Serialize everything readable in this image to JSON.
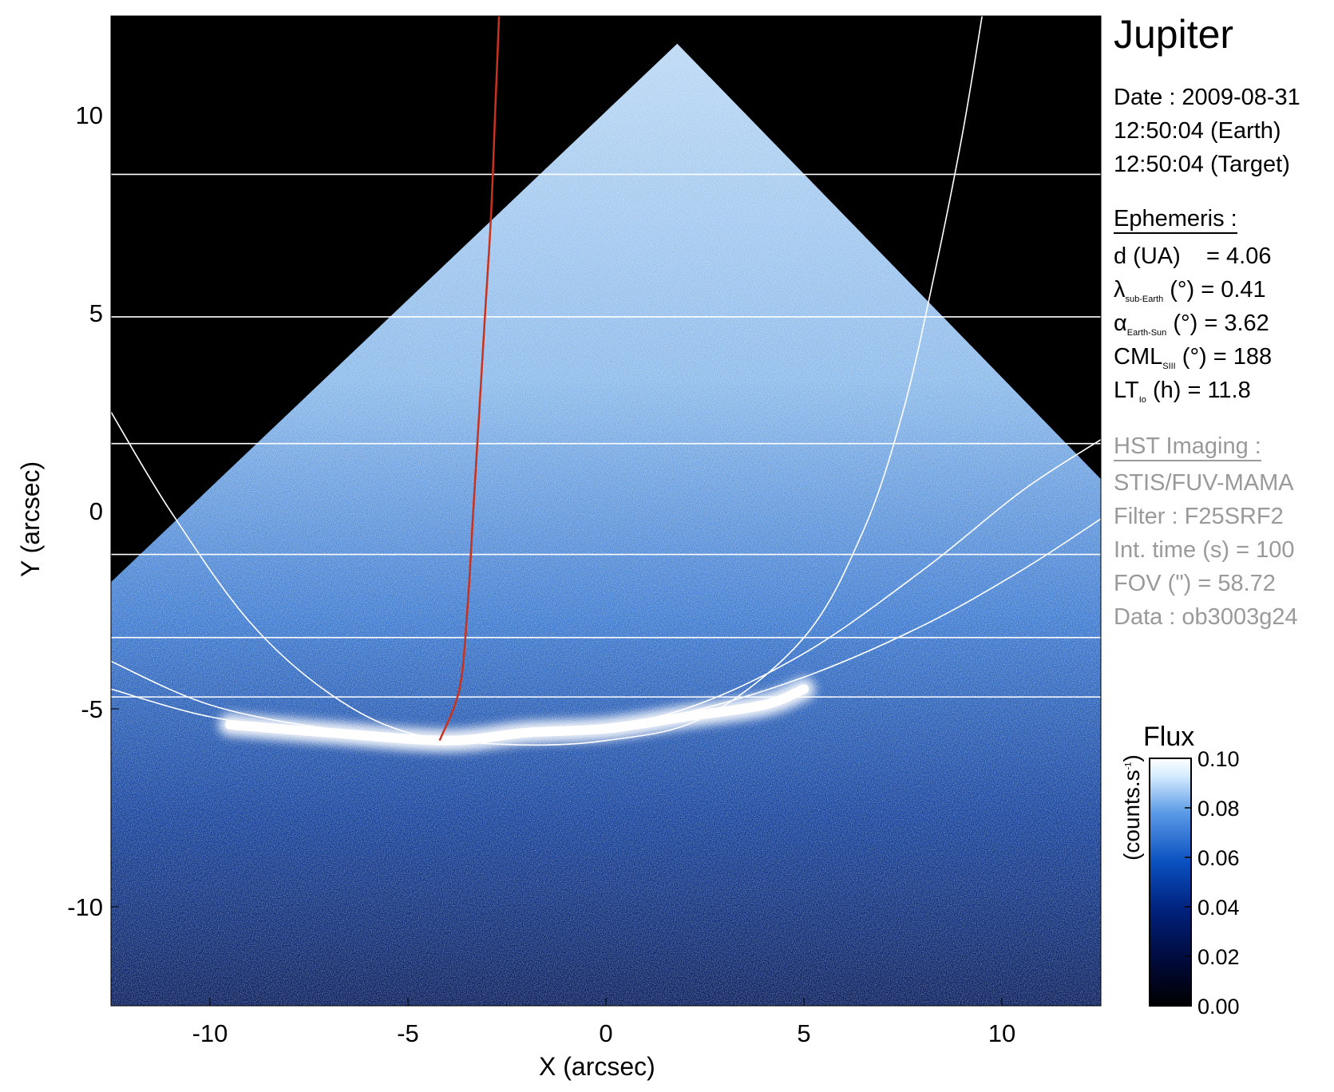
{
  "chart_data": {
    "type": "heatmap",
    "title": "Jupiter",
    "xlabel": "X (arcsec)",
    "ylabel": "Y (arcsec)",
    "xlim": [
      -12.5,
      12.5
    ],
    "ylim": [
      -12.5,
      12.5
    ],
    "x_ticks": [
      -10,
      -5,
      0,
      5,
      10
    ],
    "y_ticks": [
      -10,
      -5,
      0,
      5,
      10
    ],
    "background_color": "#000000",
    "colormap": [
      "#000000",
      "#000a3a",
      "#00207a",
      "#0a50c0",
      "#5a9ae6",
      "#d6ecff",
      "#ffffff"
    ],
    "colorbar": {
      "title": "Flux",
      "unit": "(counts.s",
      "unit_exponent": "-1",
      "unit_close": ")",
      "range": [
        0.0,
        0.1
      ],
      "ticks": [
        "0.10",
        "0.08",
        "0.06",
        "0.04",
        "0.02",
        "0.00"
      ]
    },
    "emission": {
      "detector_footprint": [
        [
          -12.5,
          -1.8
        ],
        [
          1.8,
          11.8
        ],
        [
          12.5,
          0.8
        ],
        [
          12.5,
          -12.5
        ],
        [
          -12.5,
          -12.5
        ]
      ],
      "auroral_oval_color": "#ffffff",
      "auroral_oval_points": [
        [
          -9.5,
          -5.4
        ],
        [
          -7,
          -5.6
        ],
        [
          -4,
          -5.8
        ],
        [
          -2,
          -5.6
        ],
        [
          0,
          -5.5
        ],
        [
          2,
          -5.2
        ],
        [
          4,
          -4.9
        ],
        [
          5,
          -4.5
        ]
      ]
    },
    "latitude_lines_y": [
      8.5,
      4.9,
      1.7,
      -1.1,
      -3.2,
      -4.7
    ],
    "grid_color": "#ffffff",
    "meridian_curves": [
      [
        [
          -12.5,
          2.5
        ],
        [
          -11,
          0
        ],
        [
          -9,
          -2.8
        ],
        [
          -7,
          -4.6
        ],
        [
          -5,
          -5.6
        ],
        [
          -2.5,
          -5.9
        ],
        [
          0,
          -5.8
        ],
        [
          2.5,
          -5.2
        ],
        [
          5,
          -3.2
        ],
        [
          6.5,
          -0.5
        ],
        [
          7.5,
          2.5
        ],
        [
          8.3,
          6
        ],
        [
          9,
          9.5
        ],
        [
          9.5,
          12.5
        ]
      ],
      [
        [
          -12.5,
          -3.8
        ],
        [
          -10,
          -4.9
        ],
        [
          -7,
          -5.5
        ],
        [
          -4,
          -5.7
        ],
        [
          -1,
          -5.6
        ],
        [
          2,
          -5.0
        ],
        [
          5,
          -3.6
        ],
        [
          8,
          -1.5
        ],
        [
          10.5,
          0.5
        ],
        [
          12.5,
          1.8
        ]
      ],
      [
        [
          -12.5,
          -4.5
        ],
        [
          -10,
          -5.2
        ],
        [
          -7,
          -5.6
        ],
        [
          -4,
          -5.7
        ],
        [
          -1,
          -5.6
        ],
        [
          2,
          -5.1
        ],
        [
          5,
          -4.2
        ],
        [
          8,
          -2.9
        ],
        [
          10.5,
          -1.5
        ],
        [
          12.5,
          -0.2
        ]
      ]
    ],
    "io_footprint_color": "#c8321e",
    "io_footprint_trace": [
      [
        -2.7,
        12.5
      ],
      [
        -2.8,
        10.0
      ],
      [
        -2.9,
        7.5
      ],
      [
        -3.05,
        5.0
      ],
      [
        -3.2,
        2.5
      ],
      [
        -3.35,
        0
      ],
      [
        -3.5,
        -2.5
      ],
      [
        -3.7,
        -4.5
      ],
      [
        -4.2,
        -5.8
      ]
    ],
    "info": {
      "name": "Jupiter",
      "date_line": "Date : 2009-08-31",
      "earth_time": "12:50:04 (Earth)",
      "target_time": "12:50:04 (Target)",
      "ephemeris_header": "Ephemeris :",
      "d_line": "d (UA)    = 4.06",
      "lambda_symbol": "λ",
      "lambda_sub": "sub-Earth",
      "lambda_rest": " (°) = 0.41",
      "alpha_symbol": "α",
      "alpha_sub": "Earth-Sun",
      "alpha_rest": " (°) = 3.62",
      "cml_main": "CML",
      "cml_sub": "SIII",
      "cml_rest": " (°) = 188",
      "lt_main": "LT",
      "lt_sub": "Io",
      "lt_rest": " (h) = 11.8",
      "hst_header": "HST Imaging :",
      "instrument": "STIS/FUV-MAMA",
      "filter": "Filter : F25SRF2",
      "int_time": "Int. time (s) = 100",
      "fov": "FOV (\") = 58.72",
      "data_id": "Data : ob3003g24"
    }
  }
}
